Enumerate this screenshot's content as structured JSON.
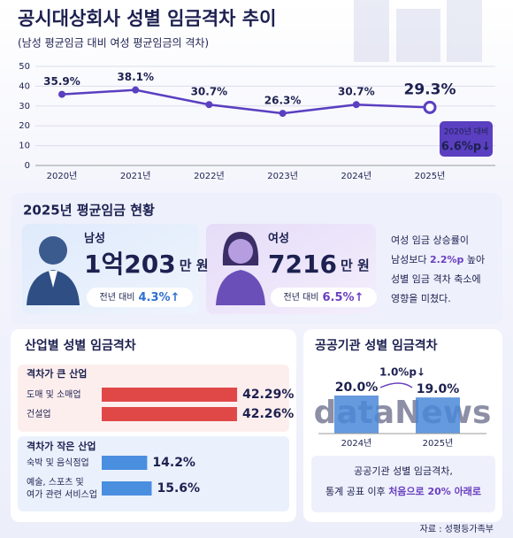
{
  "chart_data": [
    {
      "type": "line",
      "title": "공시대상회사 성별 임금격차 추이",
      "subtitle": "(남성 평균임금 대비 여성 평균임금의 격차)",
      "categories": [
        "2020년",
        "2021년",
        "2022년",
        "2023년",
        "2024년",
        "2025년"
      ],
      "values": [
        35.9,
        38.1,
        30.7,
        26.3,
        30.7,
        29.3
      ],
      "value_labels": [
        "35.9%",
        "38.1%",
        "30.7%",
        "26.3%",
        "30.7%",
        "29.3%"
      ],
      "color": "#5a3fc0",
      "ylim": [
        0,
        50
      ],
      "yticks": [
        0,
        10,
        20,
        30,
        40,
        50
      ],
      "grid": true,
      "annotation": {
        "text": "2020년 대비",
        "value_label": "6.6%p↓"
      }
    },
    {
      "type": "hbar",
      "title": "산업별 성별 임금격차",
      "groups": [
        {
          "name": "격차가 큰 산업",
          "color": "#e04848",
          "categories": [
            "도매 및 소매업",
            "건설업"
          ],
          "values": [
            42.29,
            42.26
          ],
          "value_labels": [
            "42.29%",
            "42.26%"
          ]
        },
        {
          "name": "격차가 작은 산업",
          "color": "#4a8ee0",
          "categories": [
            "숙박 및 음식점업",
            "예술, 스포츠 및\n여가 관련 서비스업"
          ],
          "values": [
            14.2,
            15.6
          ],
          "value_labels": [
            "14.2%",
            "15.6%"
          ]
        }
      ]
    },
    {
      "type": "bar",
      "title": "공공기관 성별 임금격차",
      "categories": [
        "2024년",
        "2025년"
      ],
      "values": [
        20.0,
        19.0
      ],
      "value_labels": [
        "20.0%",
        "19.0%"
      ],
      "color": "#4a88d8",
      "annotation": "1.0%p↓",
      "watermark": "dataNews",
      "note": [
        "공공기관 성별 임금격차,",
        "통계 공표 이후 ",
        "처음으로 20% 아래로"
      ]
    }
  ],
  "summary": {
    "title": "2025년 평균임금 현황",
    "male": {
      "label": "남성",
      "amount": "1억203",
      "unit": "만 원",
      "change_label": "전년 대비",
      "change": "4.3%↑"
    },
    "female": {
      "label": "여성",
      "amount": "7216",
      "unit": "만 원",
      "change_label": "전년 대비",
      "change": "6.5%↑"
    },
    "note": [
      "여성 임금 상승률이",
      "남성보다 ",
      "2.2%p",
      " 높아",
      "성별 임금 격차 축소에",
      "영향을 미쳤다."
    ]
  },
  "source": "자료 : 성평등가족부"
}
